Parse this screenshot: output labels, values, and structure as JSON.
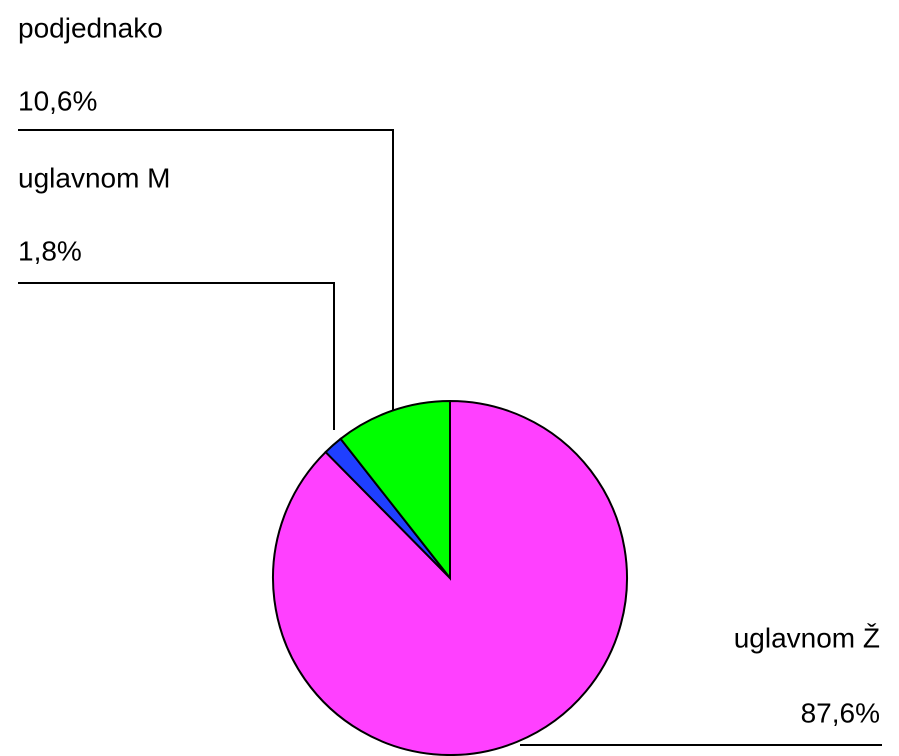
{
  "chart_data": {
    "type": "pie",
    "categories": [
      "uglavnom Ž",
      "uglavnom M",
      "podjednako"
    ],
    "values": [
      87.6,
      1.8,
      10.6
    ],
    "value_labels": [
      "87,6%",
      "1,8%",
      "10,6%"
    ],
    "colors": [
      "#ff40ff",
      "#1f3fff",
      "#00ff00"
    ]
  }
}
